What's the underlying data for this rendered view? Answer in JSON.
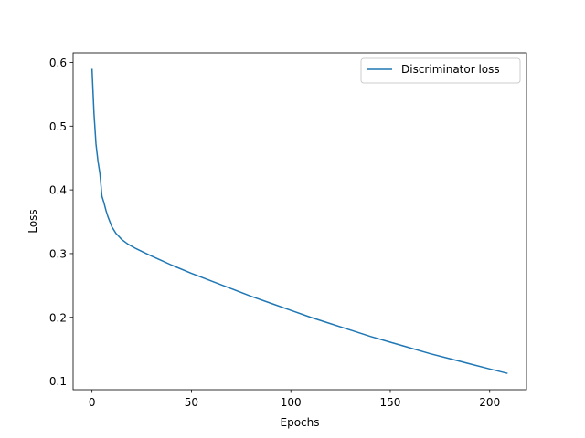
{
  "chart_data": {
    "type": "line",
    "title": "",
    "xlabel": "Epochs",
    "ylabel": "Loss",
    "xlim": [
      -9.5,
      218.5
    ],
    "ylim": [
      0.0865,
      0.615
    ],
    "xticks": [
      0,
      50,
      100,
      150,
      200
    ],
    "yticks": [
      0.1,
      0.2,
      0.3,
      0.4,
      0.5,
      0.6
    ],
    "xtick_labels": [
      "0",
      "50",
      "100",
      "150",
      "200"
    ],
    "ytick_labels": [
      "0.1",
      "0.2",
      "0.3",
      "0.4",
      "0.5",
      "0.6"
    ],
    "grid": false,
    "legend": {
      "position": "top-right",
      "entries": [
        "Discriminator loss"
      ]
    },
    "series": [
      {
        "name": "Discriminator loss",
        "color": "#1f77b4",
        "x": [
          0,
          1,
          2,
          3,
          4,
          5,
          6,
          7,
          8,
          10,
          12,
          15,
          18,
          22,
          26,
          30,
          35,
          40,
          50,
          60,
          70,
          80,
          90,
          100,
          110,
          120,
          130,
          140,
          150,
          160,
          170,
          180,
          190,
          200,
          209
        ],
        "y": [
          0.59,
          0.52,
          0.472,
          0.445,
          0.425,
          0.39,
          0.38,
          0.368,
          0.358,
          0.342,
          0.332,
          0.322,
          0.315,
          0.308,
          0.302,
          0.296,
          0.289,
          0.282,
          0.269,
          0.257,
          0.245,
          0.233,
          0.222,
          0.211,
          0.2,
          0.19,
          0.18,
          0.17,
          0.161,
          0.152,
          0.143,
          0.135,
          0.127,
          0.119,
          0.112
        ]
      }
    ]
  }
}
